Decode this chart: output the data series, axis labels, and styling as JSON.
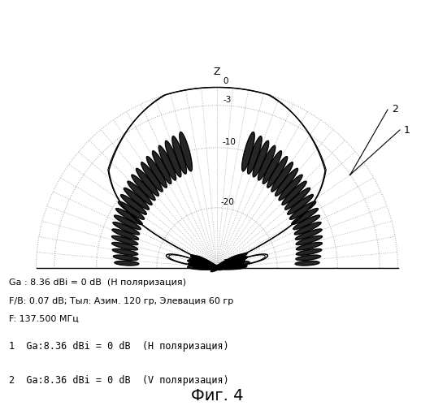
{
  "title_info_1": "Ga : 8.36 dBi = 0 dB  (H поляризация)",
  "title_info_2": "F/B: 0.07 dB; Тыл: Азим. 120 гр, Элевация 60 гр",
  "title_info_3": "F: 137.500 МГц",
  "legend_line1": "1  Ga:8.36 dBi = 0 dB  (H поляризация)",
  "legend_line2": "2  Ga:8.36 dBi = 0 dB  (V поляризация)",
  "fig_caption": "Фиг. 4",
  "bg_color": "#ffffff",
  "circle_color": "#999999",
  "radial_color": "#999999",
  "r_levels_db": [
    0,
    -3,
    -10,
    -20,
    -30
  ],
  "num_radials": 36
}
